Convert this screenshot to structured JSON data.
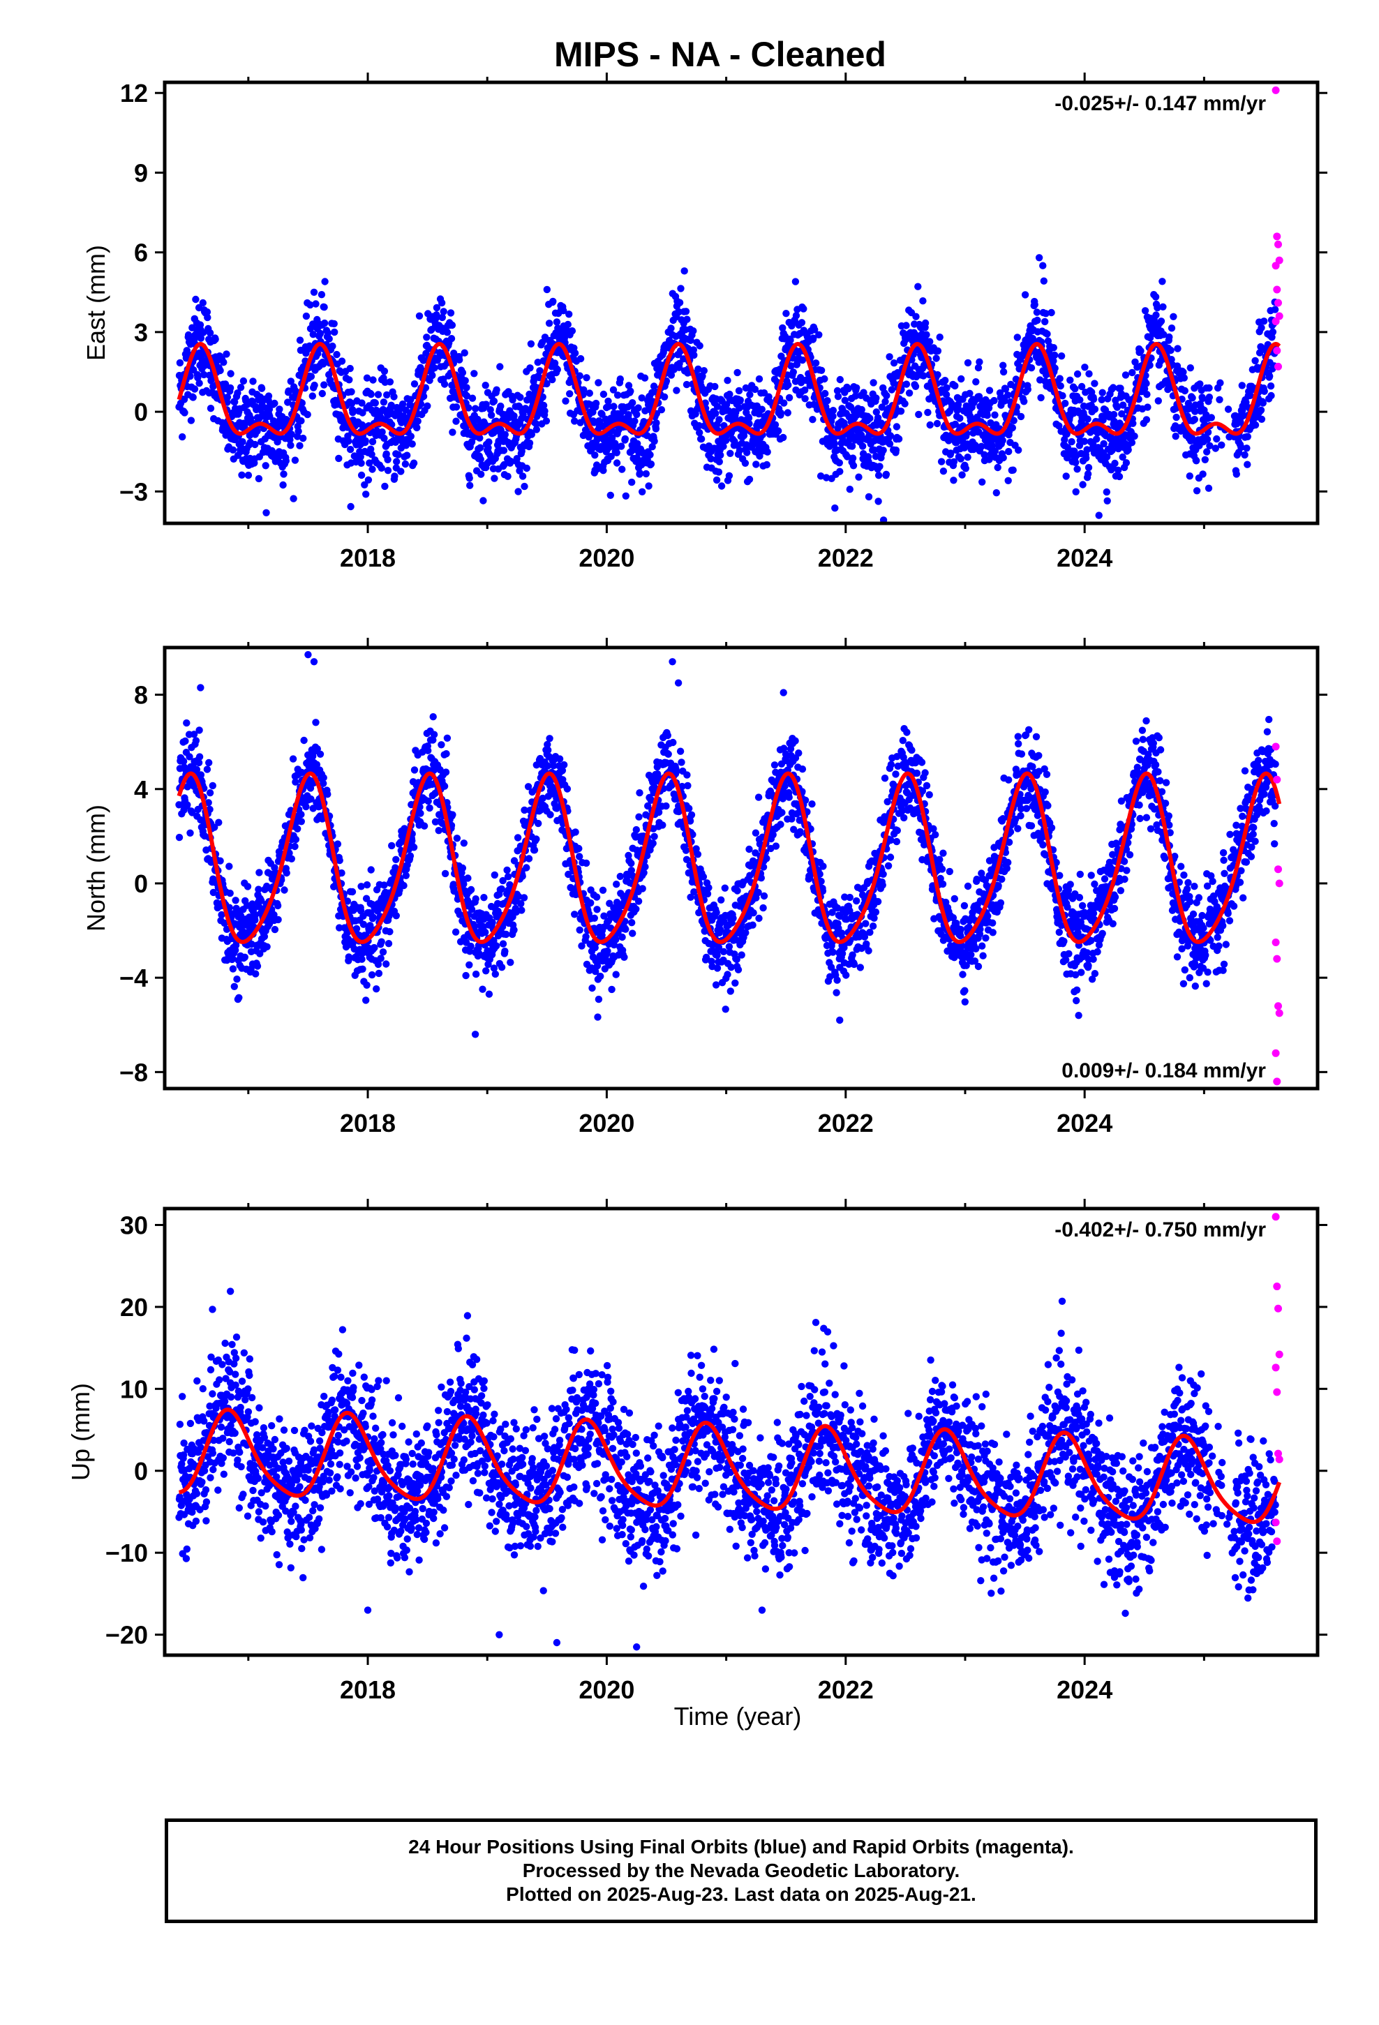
{
  "colors": {
    "final_orbits": "#0000ff",
    "rapid_orbits": "#ff00ff",
    "model_fit": "#ff0000",
    "axis": "#000000"
  },
  "figure": {
    "title": "MIPS  - NA - Cleaned",
    "xlabel": "Time (year)"
  },
  "footer": {
    "line1": "24 Hour Positions Using Final Orbits (blue) and Rapid Orbits (magenta).",
    "line2": "Processed by the Nevada Geodetic Laboratory.",
    "line3": "Plotted on 2025-Aug-23. Last data on 2025-Aug-21."
  },
  "chart_data": [
    {
      "type": "scatter",
      "component": "east",
      "ylabel": "East (mm)",
      "rate_text": "-0.025+/- 0.147 mm/yr",
      "rate_position": "top-right",
      "xlim": [
        2016.3,
        2025.95
      ],
      "ylim": [
        -4.2,
        12.4
      ],
      "xticks": [
        2018,
        2020,
        2022,
        2024
      ],
      "yticks": [
        -3,
        0,
        3,
        6,
        9,
        12
      ],
      "data_start": 2016.42,
      "data_end": 2025.63,
      "seasonal_model": {
        "offset": 0.6,
        "annual_amp": 1.5,
        "annual_peak": 0.6,
        "semiannual_amp": 0.75,
        "semiannual_peak": 0.1
      },
      "scatter_sd": 0.9,
      "final_orbit_points": [
        [
          2016.55,
          3.5
        ],
        [
          2016.62,
          4.1
        ],
        [
          2017.15,
          -3.8
        ],
        [
          2017.55,
          4.5
        ],
        [
          2018.62,
          4.1
        ],
        [
          2019.5,
          4.6
        ],
        [
          2020.65,
          5.3
        ],
        [
          2021.58,
          4.9
        ],
        [
          2023.62,
          5.8
        ],
        [
          2023.65,
          5.5
        ],
        [
          2024.12,
          -3.9
        ]
      ],
      "rapid_orbit_points": [
        [
          2025.6,
          12.1
        ],
        [
          2025.61,
          6.6
        ],
        [
          2025.62,
          6.3
        ],
        [
          2025.63,
          5.7
        ],
        [
          2025.6,
          5.5
        ],
        [
          2025.61,
          4.6
        ],
        [
          2025.62,
          4.1
        ],
        [
          2025.63,
          3.6
        ],
        [
          2025.6,
          3.4
        ],
        [
          2025.61,
          2.3
        ],
        [
          2025.62,
          1.7
        ]
      ]
    },
    {
      "type": "scatter",
      "component": "north",
      "ylabel": "North (mm)",
      "rate_text": "0.009+/- 0.184 mm/yr",
      "rate_position": "bottom-right",
      "xlim": [
        2016.3,
        2025.95
      ],
      "ylim": [
        -8.7,
        10.0
      ],
      "xticks": [
        2018,
        2020,
        2022,
        2024
      ],
      "yticks": [
        -8,
        -4,
        0,
        4,
        8
      ],
      "data_start": 2016.42,
      "data_end": 2025.63,
      "seasonal_model": {
        "offset": 1.35,
        "annual_amp": 3.5,
        "annual_peak": 0.5,
        "semiannual_amp": 0.55,
        "semiannual_peak": 0.05
      },
      "scatter_sd": 0.95,
      "final_orbit_points": [
        [
          2016.6,
          8.3
        ],
        [
          2017.5,
          9.7
        ],
        [
          2017.55,
          9.4
        ],
        [
          2018.9,
          -6.4
        ],
        [
          2020.55,
          9.4
        ],
        [
          2020.6,
          8.5
        ],
        [
          2021.95,
          -5.8
        ],
        [
          2023.95,
          -5.6
        ]
      ],
      "rapid_orbit_points": [
        [
          2025.6,
          5.8
        ],
        [
          2025.61,
          4.4
        ],
        [
          2025.62,
          0.6
        ],
        [
          2025.63,
          0.0
        ],
        [
          2025.6,
          -2.5
        ],
        [
          2025.61,
          -3.2
        ],
        [
          2025.62,
          -5.2
        ],
        [
          2025.63,
          -5.5
        ],
        [
          2025.6,
          -7.2
        ],
        [
          2025.61,
          -8.4
        ]
      ]
    },
    {
      "type": "scatter",
      "component": "up",
      "ylabel": "Up (mm)",
      "rate_text": "-0.402+/- 0.750 mm/yr",
      "rate_position": "top-right",
      "xlim": [
        2016.3,
        2025.95
      ],
      "ylim": [
        -22.5,
        32.0
      ],
      "xticks": [
        2018,
        2020,
        2022,
        2024
      ],
      "yticks": [
        -20,
        -10,
        0,
        10,
        20,
        30
      ],
      "data_start": 2016.42,
      "data_end": 2025.63,
      "seasonal_model": {
        "offset": 0.0,
        "annual_amp": 5.0,
        "annual_peak": 0.85,
        "semiannual_amp": 0.9,
        "semiannual_peak": 0.3,
        "trend": -0.4
      },
      "scatter_sd": 4.2,
      "final_orbit_points": [
        [
          2016.85,
          21.9
        ],
        [
          2016.7,
          19.7
        ],
        [
          2019.1,
          -20.0
        ],
        [
          2020.25,
          -21.5
        ],
        [
          2021.75,
          18.1
        ],
        [
          2018.0,
          -17.0
        ],
        [
          2021.3,
          -17.0
        ],
        [
          2024.25,
          -13.0
        ]
      ],
      "rapid_orbit_points": [
        [
          2025.6,
          31.0
        ],
        [
          2025.61,
          22.5
        ],
        [
          2025.62,
          19.8
        ],
        [
          2025.63,
          14.2
        ],
        [
          2025.6,
          12.6
        ],
        [
          2025.61,
          9.6
        ],
        [
          2025.62,
          2.1
        ],
        [
          2025.63,
          1.4
        ],
        [
          2025.6,
          -6.3
        ],
        [
          2025.61,
          -8.6
        ]
      ]
    }
  ]
}
